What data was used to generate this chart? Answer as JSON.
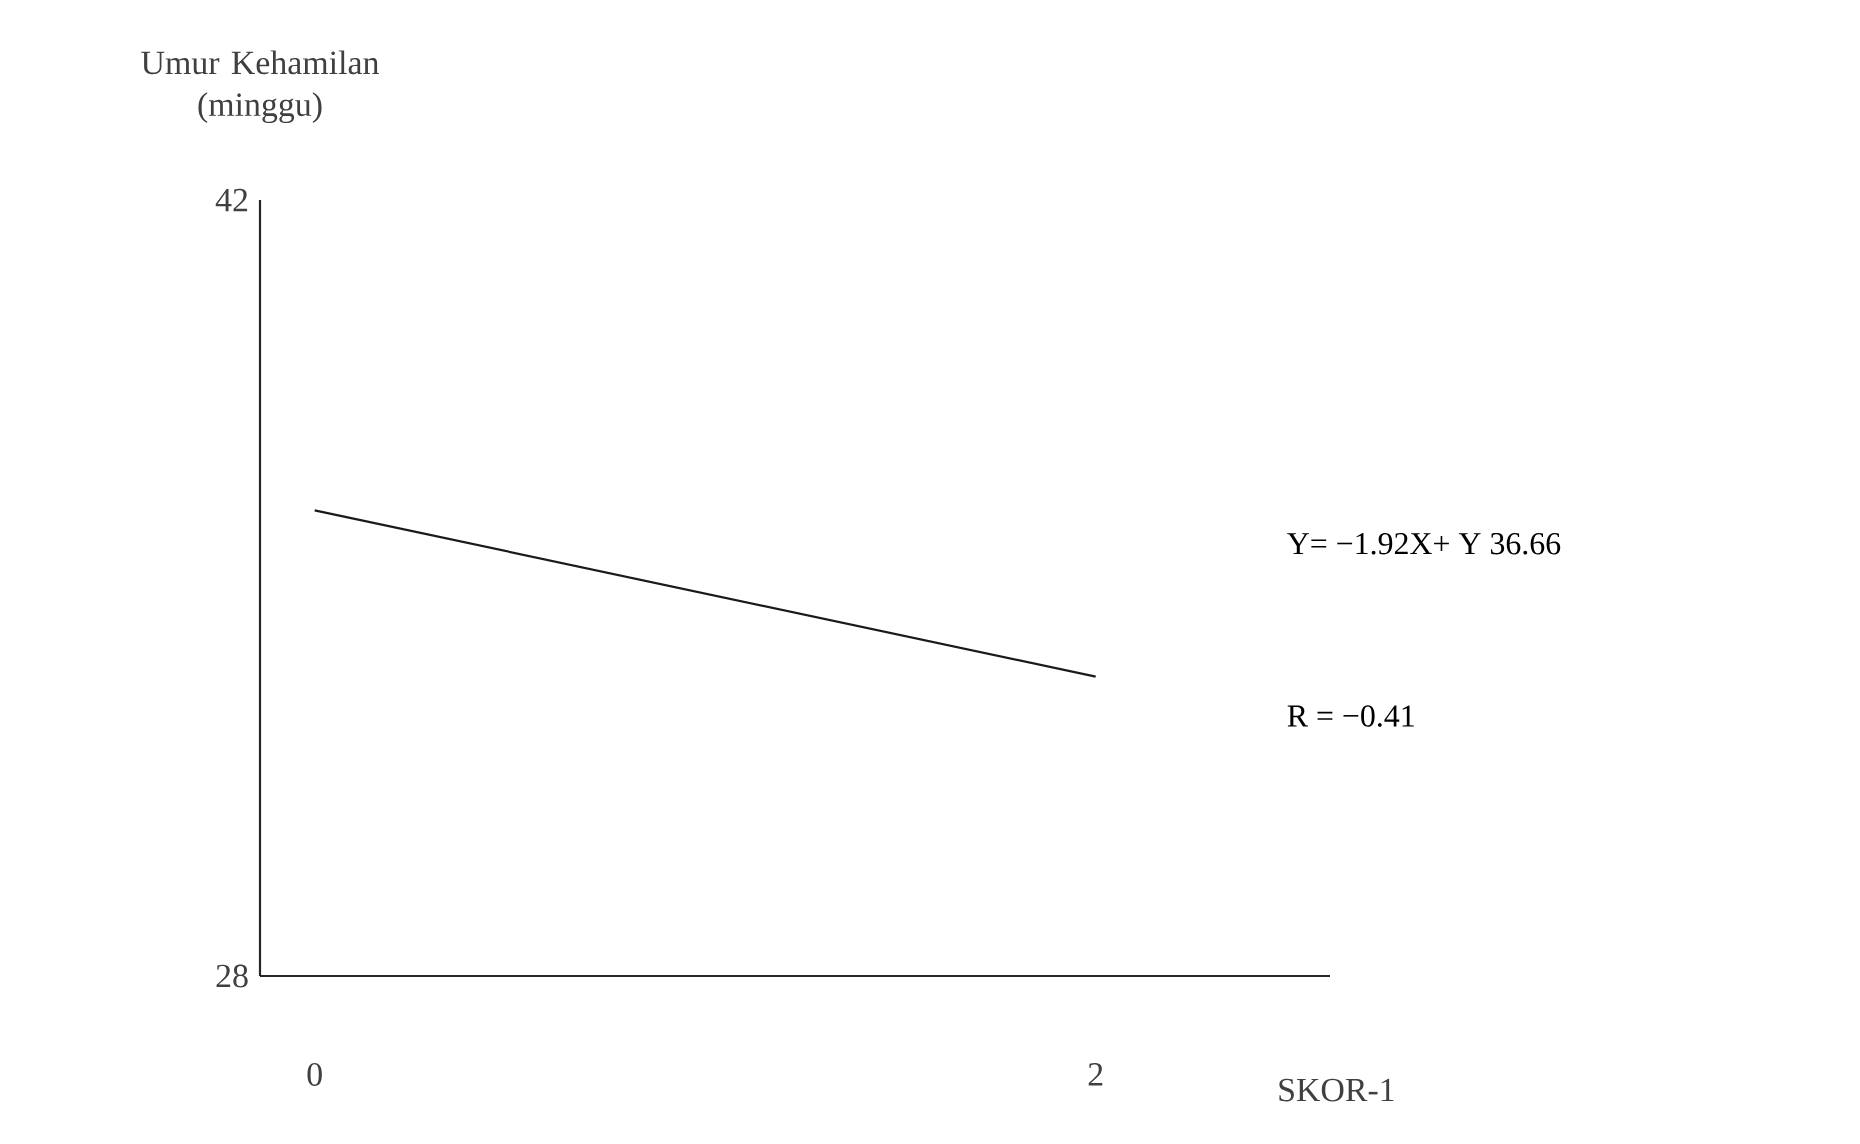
{
  "chart_data": {
    "type": "line",
    "xlabel": "SKOR-1",
    "ylabel": "Umur Kehamilan (minggu)",
    "x": [
      0,
      2
    ],
    "series": [
      {
        "color": "#1a1a1a",
        "values": [
          36.4,
          33.4
        ]
      }
    ],
    "xlim": [
      -0.14,
      2.6
    ],
    "ylim": [
      28,
      42
    ],
    "xticks": [
      0,
      2
    ],
    "yticks": [
      28,
      42
    ],
    "grid": false,
    "marker": "none",
    "line_style": "solid",
    "annotations": [
      "Y= −1.92X+ Y 36.66",
      "R = −0.41"
    ]
  }
}
